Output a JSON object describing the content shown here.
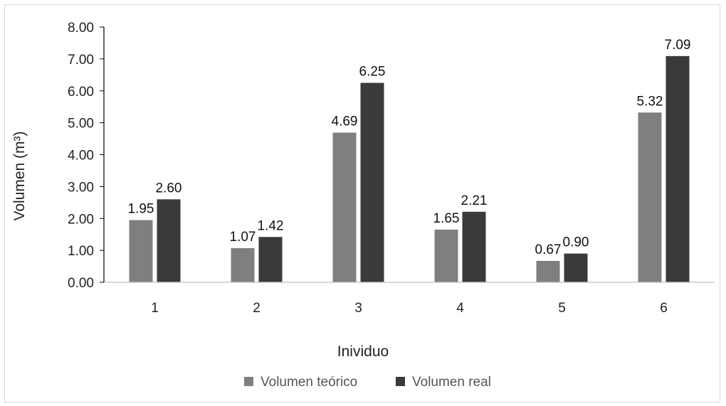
{
  "chart_data": {
    "type": "bar",
    "categories": [
      "1",
      "2",
      "3",
      "4",
      "5",
      "6"
    ],
    "series": [
      {
        "name": "Volumen teórico",
        "values": [
          1.95,
          1.07,
          4.69,
          1.65,
          0.67,
          5.32
        ],
        "color": "#7f7f7f"
      },
      {
        "name": "Volumen real",
        "values": [
          2.6,
          1.42,
          6.25,
          2.21,
          0.9,
          7.09
        ],
        "color": "#3a3a3a"
      }
    ],
    "xlabel": "Inividuo",
    "ylabel": "Volumen (m³)",
    "ylim": [
      0,
      8
    ],
    "yticks": [
      "0.00",
      "1.00",
      "2.00",
      "3.00",
      "4.00",
      "5.00",
      "6.00",
      "7.00",
      "8.00"
    ],
    "grid": false,
    "legend": "bottom"
  }
}
